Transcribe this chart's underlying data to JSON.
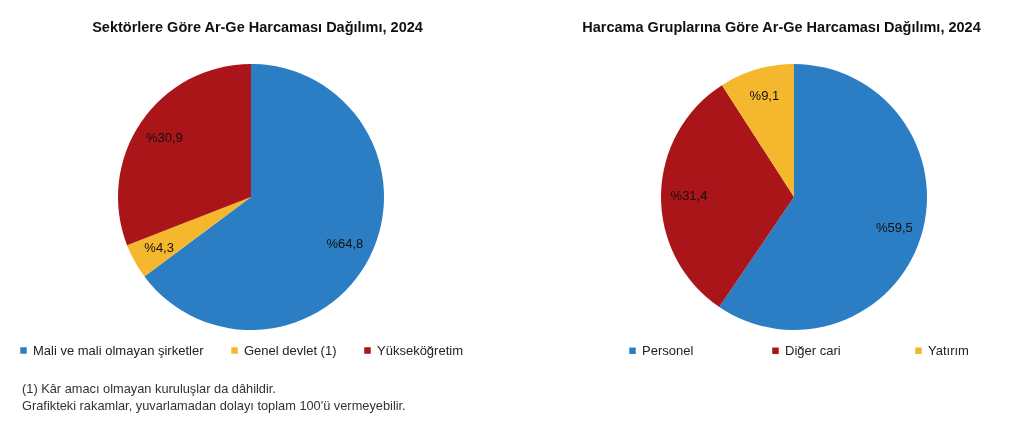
{
  "chart_data": [
    {
      "type": "pie",
      "title": "Sektörlere Göre Ar-Ge Harcaması Dağılımı, 2024",
      "categories": [
        "Mali ve mali olmayan şirketler",
        "Genel devlet (1)",
        "Yükseköğretim"
      ],
      "values": [
        64.8,
        4.3,
        30.9
      ],
      "colors": [
        "#2b7ec4",
        "#f5b72d",
        "#aa1519"
      ],
      "value_labels": [
        "%64,8",
        "%4,3",
        "%30,9"
      ],
      "legend": "bottom",
      "annotations": [
        "(1)  Kâr amacı olmayan kuruluşlar da dâhildir.",
        "Grafikteki rakamlar, yuvarlamadan dolayı toplam 100'ü vermeyebilir."
      ]
    },
    {
      "type": "pie",
      "title": "Harcama Gruplarına Göre Ar-Ge Harcaması Dağılımı, 2024",
      "categories": [
        "Personel",
        "Diğer cari",
        "Yatırım"
      ],
      "values": [
        59.5,
        31.4,
        9.1
      ],
      "colors": [
        "#2b7ec4",
        "#aa1519",
        "#f5b72d"
      ],
      "value_labels": [
        "%59,5",
        "%31,4",
        "%9,1"
      ],
      "legend": "bottom"
    }
  ]
}
